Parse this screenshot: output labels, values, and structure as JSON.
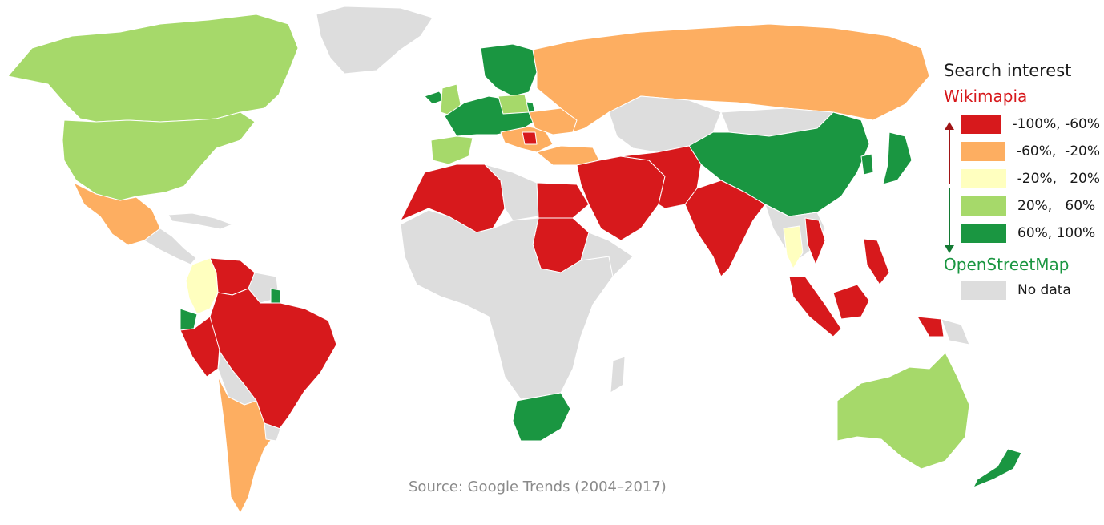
{
  "legend": {
    "title": "Search interest",
    "top_label": "Wikimapia",
    "bottom_label": "OpenStreetMap",
    "bins": [
      {
        "label": "-100%, -60%",
        "color": "#d7191c"
      },
      {
        "label": "-60%,  -20%",
        "color": "#fdae61"
      },
      {
        "label": "-20%,   20%",
        "color": "#ffffbf"
      },
      {
        "label": "20%,   60%",
        "color": "#a6d96a"
      },
      {
        "label": "60%, 100%",
        "color": "#1a9641"
      }
    ],
    "no_data": {
      "label": "No data",
      "color": "#dddddd"
    }
  },
  "source": "Source: Google Trends (2004–2017)"
}
